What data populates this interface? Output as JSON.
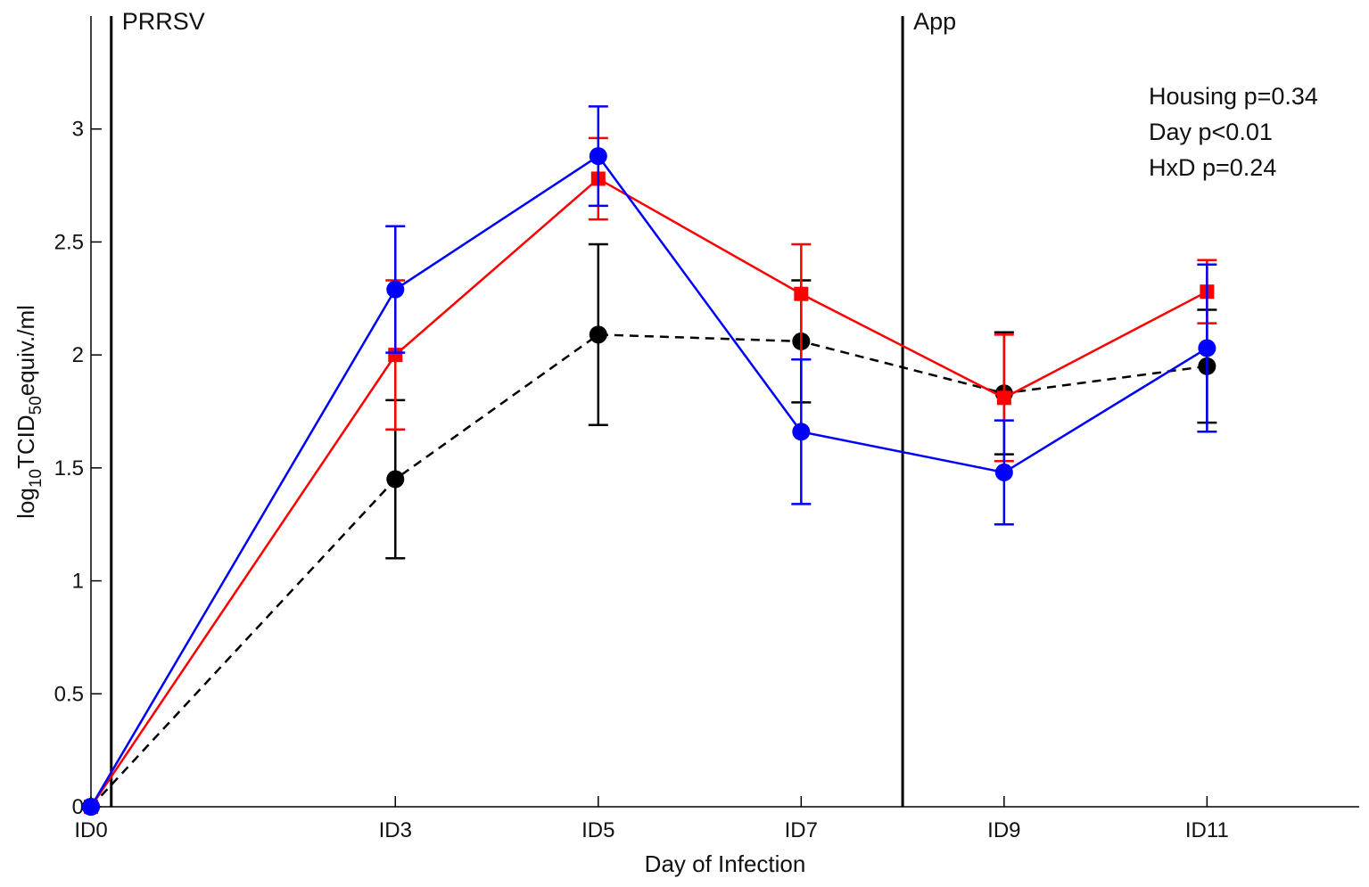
{
  "chart_data": {
    "type": "line",
    "xlabel": "Day of Infection",
    "ylabel": {
      "pre": "log",
      "sub1": "10",
      "mid": "TCID",
      "sub2": "50",
      "post": "equiv./ml"
    },
    "categories": [
      "ID0",
      "ID3",
      "ID5",
      "ID7",
      "ID9",
      "ID11"
    ],
    "x": [
      0,
      3,
      5,
      7,
      9,
      11
    ],
    "xlim": [
      0,
      12.5
    ],
    "ylim": [
      0,
      3.5
    ],
    "yticks": [
      0,
      0.5,
      1,
      1.5,
      2,
      2.5,
      3
    ],
    "ytick_labels": [
      "0",
      "0.5",
      "1",
      "1.5",
      "2",
      "2.5",
      "3"
    ],
    "event_markers": [
      {
        "x": 0.2,
        "label": "PRRSV"
      },
      {
        "x": 8,
        "label": "App"
      }
    ],
    "stats": [
      "Housing p=0.34",
      "Day p<0.01",
      "HxD p=0.24"
    ],
    "series": [
      {
        "name": "black",
        "color": "#000000",
        "line_style": "dashed",
        "marker": "circle",
        "values": [
          0,
          1.45,
          2.09,
          2.06,
          1.83,
          1.95
        ],
        "err_low": [
          0,
          1.1,
          1.69,
          1.79,
          1.56,
          1.7
        ],
        "err_high": [
          0,
          1.8,
          2.49,
          2.33,
          2.1,
          2.2
        ]
      },
      {
        "name": "red",
        "color": "#ff0000",
        "line_style": "solid",
        "marker": "square",
        "values": [
          0,
          2.0,
          2.78,
          2.27,
          1.81,
          2.28
        ],
        "err_low": [
          0,
          1.67,
          2.6,
          1.98,
          1.53,
          2.14
        ],
        "err_high": [
          0,
          2.33,
          2.96,
          2.49,
          2.09,
          2.42
        ]
      },
      {
        "name": "blue",
        "color": "#0000ff",
        "line_style": "solid",
        "marker": "circle",
        "values": [
          0,
          2.29,
          2.88,
          1.66,
          1.48,
          2.03
        ],
        "err_low": [
          0,
          2.01,
          2.66,
          1.34,
          1.25,
          1.66
        ],
        "err_high": [
          0,
          2.57,
          3.1,
          1.98,
          1.71,
          2.4
        ]
      }
    ]
  }
}
